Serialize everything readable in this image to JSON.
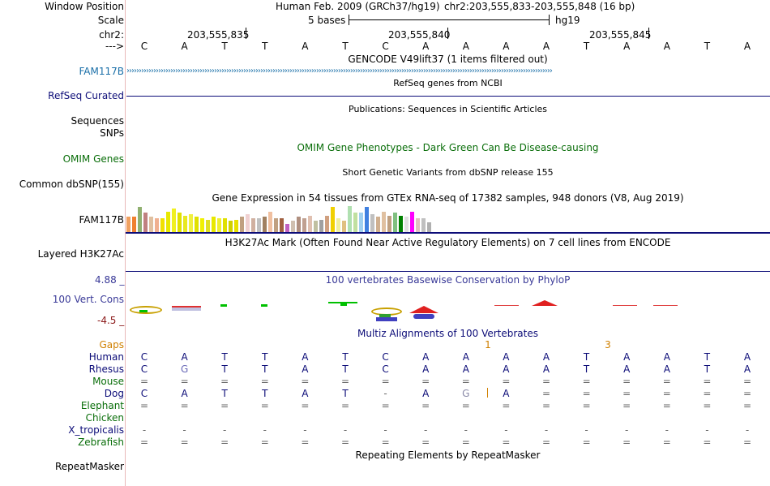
{
  "header": {
    "window_position_label": "Window Position",
    "assembly": "Human Feb. 2009 (GRCh37/hg19)",
    "position": "chr2:203,555,833-203,555,848 (16 bp)",
    "scale_label": "Scale",
    "scale_bases": "5 bases",
    "scale_db": "hg19",
    "chrom_label": "chr2:",
    "coords": [
      "203,555,835",
      "203,555,840",
      "203,555,845"
    ],
    "strand_label": "--->"
  },
  "sequence": [
    "C",
    "A",
    "T",
    "T",
    "A",
    "T",
    "C",
    "A",
    "A",
    "A",
    "A",
    "T",
    "A",
    "A",
    "T",
    "A"
  ],
  "tracks": {
    "gencode": {
      "label": "FAM117B",
      "title": "GENCODE V49lift37 (1 items filtered out)",
      "color": "#1a6fa8"
    },
    "refseq": {
      "label": "RefSeq Curated",
      "title": "RefSeq genes from NCBI",
      "color": "#0c0c78"
    },
    "publications": {
      "title": "Publications: Sequences in Scientific Articles"
    },
    "sequences": {
      "label": "Sequences"
    },
    "snps": {
      "label": "SNPs"
    },
    "omim": {
      "label": "OMIM Genes",
      "title": "OMIM Gene Phenotypes - Dark Green Can Be Disease-causing",
      "color": "#0a6e0a"
    },
    "dbsnp": {
      "label": "Common dbSNP(155)",
      "title": "Short Genetic Variants from dbSNP release 155"
    },
    "gtex": {
      "label": "FAM117B",
      "title": "Gene Expression in 54 tissues from GTEx RNA-seq of 17382 samples, 948 donors (V8, Aug 2019)"
    },
    "h3k27ac": {
      "label": "Layered H3K27Ac",
      "title": "H3K27Ac Mark (Often Found Near Active Regulatory Elements) on 7 cell lines from ENCODE"
    },
    "cons": {
      "label": "100 Vert. Cons",
      "title": "100 vertebrates Basewise Conservation by PhyloP",
      "max": "4.88 _",
      "min": "-4.5 _",
      "color": "#3a3a98"
    },
    "multiz": {
      "title": "Multiz Alignments of 100 Vertebrates",
      "gaps_label": "Gaps",
      "gap_counts": [
        {
          "pos": 9,
          "text": "1"
        },
        {
          "pos": 11,
          "text": "3"
        }
      ]
    },
    "repeatmasker": {
      "label": "RepeatMasker",
      "title": "Repeating Elements by RepeatMasker"
    }
  },
  "alignment": [
    {
      "species": "Human",
      "color": "#0c0c78",
      "bases": [
        "C",
        "A",
        "T",
        "T",
        "A",
        "T",
        "C",
        "A",
        "A",
        "A",
        "A",
        "T",
        "A",
        "A",
        "T",
        "A"
      ]
    },
    {
      "species": "Rhesus",
      "color": "#0c0c78",
      "bases": [
        "C",
        "G",
        "T",
        "T",
        "A",
        "T",
        "C",
        "A",
        "A",
        "A",
        "A",
        "T",
        "A",
        "A",
        "T",
        "A"
      ]
    },
    {
      "species": "Mouse",
      "color": "#0a6e0a",
      "bases": [
        "=",
        "=",
        "=",
        "=",
        "=",
        "=",
        "=",
        "=",
        "=",
        "=",
        "=",
        "=",
        "=",
        "=",
        "=",
        "="
      ]
    },
    {
      "species": "Dog",
      "color": "#0c0c78",
      "bases": [
        "C",
        "A",
        "T",
        "T",
        "A",
        "T",
        "-",
        "A",
        "G",
        "A",
        "=",
        "=",
        "=",
        "=",
        "=",
        "="
      ]
    },
    {
      "species": "Elephant",
      "color": "#0a6e0a",
      "bases": [
        "=",
        "=",
        "=",
        "=",
        "=",
        "=",
        "=",
        "=",
        "=",
        "=",
        "=",
        "=",
        "=",
        "=",
        "=",
        "="
      ]
    },
    {
      "species": "Chicken",
      "color": "#0a6e0a",
      "bases": [
        "",
        "",
        "",
        "",
        "",
        "",
        "",
        "",
        "",
        "",
        "",
        "",
        "",
        "",
        "",
        ""
      ]
    },
    {
      "species": "X_tropicalis",
      "color": "#0c0c78",
      "bases": [
        "-",
        "-",
        "-",
        "-",
        "-",
        "-",
        "-",
        "-",
        "-",
        "-",
        "-",
        "-",
        "-",
        "-",
        "-",
        "-"
      ]
    },
    {
      "species": "Zebrafish",
      "color": "#0a6e0a",
      "bases": [
        "=",
        "=",
        "=",
        "=",
        "=",
        "=",
        "=",
        "=",
        "=",
        "=",
        "=",
        "=",
        "=",
        "=",
        "=",
        "="
      ]
    }
  ],
  "gtex_values": [
    0.55,
    0.55,
    0.9,
    0.7,
    0.55,
    0.5,
    0.5,
    0.75,
    0.85,
    0.7,
    0.6,
    0.65,
    0.55,
    0.5,
    0.45,
    0.55,
    0.5,
    0.5,
    0.4,
    0.45,
    0.55,
    0.65,
    0.5,
    0.5,
    0.55,
    0.75,
    0.5,
    0.5,
    0.3,
    0.4,
    0.55,
    0.5,
    0.6,
    0.4,
    0.45,
    0.6,
    0.9,
    0.5,
    0.4,
    0.95,
    0.7,
    0.7,
    0.9,
    0.65,
    0.55,
    0.75,
    0.6,
    0.7,
    0.6,
    0.55,
    0.75,
    0.5,
    0.5,
    0.35
  ],
  "gtex_colors": [
    "#f0a060",
    "#f08030",
    "#90b070",
    "#c08080",
    "#e0c0a0",
    "#f0b090",
    "#f0e000",
    "#e8e800",
    "#f0f020",
    "#e0e000",
    "#e8e820",
    "#f0f040",
    "#e0e000",
    "#f0f000",
    "#e0e020",
    "#e8e800",
    "#f0f030",
    "#e0e000",
    "#d0d000",
    "#e8e000",
    "#c0a080",
    "#f0d0d0",
    "#d0b0a0",
    "#c0c0c0",
    "#a08060",
    "#f0c0a0",
    "#c0a080",
    "#a06040",
    "#c060c0",
    "#d0c0b0",
    "#b09080",
    "#c0a090",
    "#e0c0b0",
    "#c0c0a0",
    "#a0a0a0",
    "#d0a080",
    "#f0d000",
    "#f0f0a0",
    "#e0c080",
    "#b0e0b0",
    "#c0e0a0",
    "#a0d0f0",
    "#4080e0",
    "#c0c0c0",
    "#d0b090",
    "#e0c0a0",
    "#c0a080",
    "#80c080",
    "#008000",
    "#e0e0e0",
    "#ff00ff",
    "#e0c0c0",
    "#c0c0c0",
    "#b0b0b0"
  ]
}
